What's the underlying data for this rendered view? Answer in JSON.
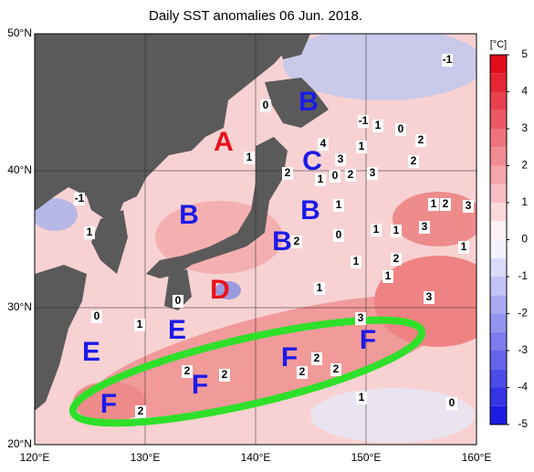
{
  "map": {
    "title": "Daily SST anomalies 06 Jun. 2018.",
    "lat_ticks": [
      {
        "value": 50,
        "label": "50°N"
      },
      {
        "value": 40,
        "label": "40°N"
      },
      {
        "value": 30,
        "label": "30°N"
      },
      {
        "value": 20,
        "label": "20°N"
      }
    ],
    "lon_ticks": [
      {
        "value": 120,
        "label": "120°E"
      },
      {
        "value": 130,
        "label": "130°E"
      },
      {
        "value": 140,
        "label": "140°E"
      },
      {
        "value": 150,
        "label": "150°E"
      },
      {
        "value": 160,
        "label": "160°E"
      }
    ],
    "lonlim": [
      120,
      160
    ],
    "latlim": [
      20,
      50
    ],
    "colorbar": {
      "unit": "[°C]",
      "lim": [
        -5,
        5
      ],
      "ticks": [
        5,
        4,
        3,
        2,
        1,
        0,
        -1,
        -2,
        -3,
        -4,
        -5
      ],
      "colormap": [
        "#1010e0",
        "#ffffff",
        "#e00010"
      ]
    },
    "regions": [
      {
        "text": "A",
        "color": "#e8101a"
      },
      {
        "text": "B",
        "color": "#1a1ae8"
      },
      {
        "text": "B",
        "color": "#1a1ae8"
      },
      {
        "text": "B",
        "color": "#1a1ae8"
      },
      {
        "text": "B",
        "color": "#1a1ae8"
      },
      {
        "text": "C",
        "color": "#1a1ae8"
      },
      {
        "text": "D",
        "color": "#e8101a"
      },
      {
        "text": "E",
        "color": "#1a1ae8"
      },
      {
        "text": "E",
        "color": "#1a1ae8"
      },
      {
        "text": "F",
        "color": "#1a1ae8"
      },
      {
        "text": "F",
        "color": "#1a1ae8"
      },
      {
        "text": "F",
        "color": "#1a1ae8"
      },
      {
        "text": "F",
        "color": "#1a1ae8"
      }
    ],
    "contour_labels": [
      -1,
      0,
      1,
      -1,
      1,
      0,
      2,
      4,
      1,
      3,
      2,
      1,
      0,
      2,
      3,
      2,
      -1,
      1,
      2,
      3,
      1,
      1,
      2,
      0,
      1,
      1,
      3,
      1,
      1,
      2,
      1,
      1,
      3,
      0,
      0,
      1,
      3,
      2,
      2,
      2,
      2,
      2,
      2,
      1,
      0
    ]
  }
}
